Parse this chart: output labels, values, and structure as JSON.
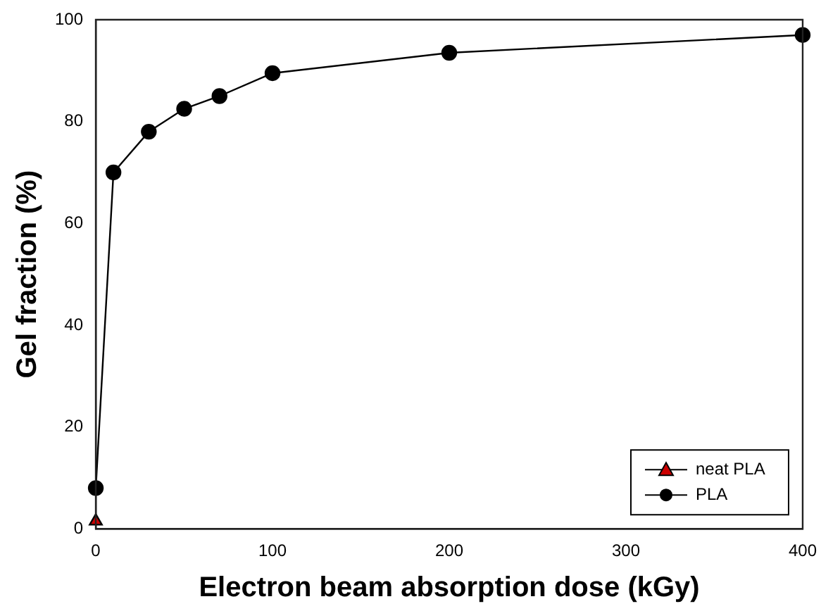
{
  "chart_data": {
    "type": "line",
    "xlabel": "Electron beam absorption dose (kGy)",
    "ylabel": "Gel fraction (%)",
    "xlim": [
      0,
      400
    ],
    "xticks": [
      0,
      100,
      200,
      300,
      400
    ],
    "ylim": [
      0,
      100
    ],
    "yticks": [
      0,
      20,
      40,
      60,
      80,
      100
    ],
    "grid": false,
    "legend": "bottom right",
    "series": [
      {
        "name": "neat PLA",
        "color": "#cc0000",
        "marker": "triangle",
        "x": [
          0
        ],
        "values": [
          1.5
        ]
      },
      {
        "name": "PLA",
        "color": "#000000",
        "marker": "circle",
        "x": [
          0,
          10,
          30,
          50,
          70,
          100,
          200,
          400
        ],
        "values": [
          8,
          70,
          78,
          82.5,
          85,
          89.5,
          93.5,
          97
        ]
      }
    ]
  }
}
